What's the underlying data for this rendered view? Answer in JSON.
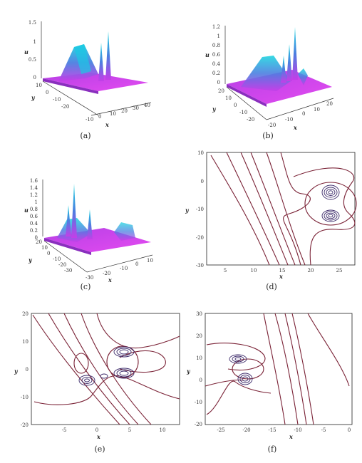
{
  "figure": {
    "panels": [
      {
        "id": "a",
        "caption": "(a)",
        "kind": "surface",
        "zlabel": "u",
        "ylabel": "y",
        "xlabel": "x",
        "zticks": [
          "1.5",
          "1",
          "0.5",
          "0"
        ],
        "yticks": [
          "10",
          "0",
          "-10",
          "-20"
        ],
        "xticks": [
          "-10",
          "0",
          "10",
          "20",
          "30",
          "40"
        ]
      },
      {
        "id": "b",
        "caption": "(b)",
        "kind": "surface",
        "zlabel": "u",
        "ylabel": "y",
        "xlabel": "x",
        "zticks": [
          "1.2",
          "1",
          "0.8",
          "0.6",
          "0.4",
          "0.2",
          "0"
        ],
        "yticks": [
          "20",
          "10",
          "0",
          "-10",
          "-20"
        ],
        "xticks": [
          "-20",
          "-10",
          "0",
          "10",
          "20"
        ]
      },
      {
        "id": "c",
        "caption": "(c)",
        "kind": "surface",
        "zlabel": "u",
        "ylabel": "y",
        "xlabel": "x",
        "zticks": [
          "1.6",
          "1.4",
          "1.2",
          "1",
          "0.8",
          "0.6",
          "0.4",
          "0.2",
          "0"
        ],
        "yticks": [
          "20",
          "10",
          "0",
          "-10",
          "-20",
          "-30"
        ],
        "xticks": [
          "-30",
          "-20",
          "-10",
          "0",
          "10"
        ]
      },
      {
        "id": "d",
        "caption": "(d)",
        "kind": "contour",
        "ylabel": "y",
        "xlabel": "x",
        "yticks": [
          "10",
          "0",
          "-10",
          "-20",
          "-30"
        ],
        "xticks": [
          "5",
          "10",
          "15",
          "20",
          "25"
        ]
      },
      {
        "id": "e",
        "caption": "(e)",
        "kind": "contour",
        "ylabel": "y",
        "xlabel": "x",
        "yticks": [
          "20",
          "10",
          "0",
          "-10",
          "-20"
        ],
        "xticks": [
          "-5",
          "0",
          "5",
          "10"
        ]
      },
      {
        "id": "f",
        "caption": "(f)",
        "kind": "contour",
        "ylabel": "y",
        "xlabel": "x",
        "yticks": [
          "30",
          "20",
          "10",
          "0",
          "-10",
          "-20"
        ],
        "xticks": [
          "-25",
          "-20",
          "-15",
          "-10",
          "-5",
          "0"
        ]
      }
    ],
    "colors": {
      "contour": "#7a2236",
      "contour_inner": "#3c2a6a",
      "surface_high": "#1fd6e0",
      "surface_mid": "#4b7fe0",
      "surface_low": "#c43ee8"
    }
  }
}
